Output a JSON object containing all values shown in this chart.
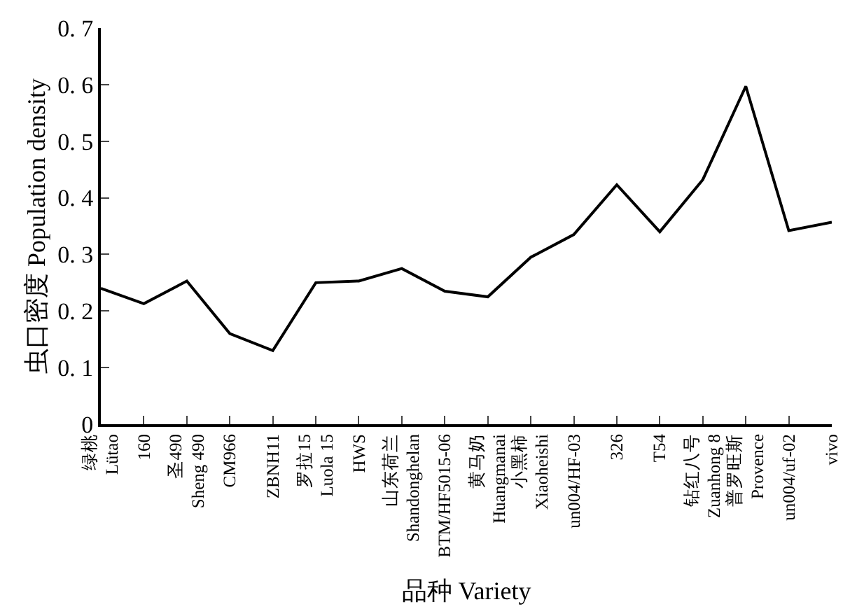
{
  "chart_data": {
    "type": "line",
    "xlabel": "品种 Variety",
    "ylabel": "虫口密度 Population density",
    "categories": [
      "绿桃\nLütao",
      "160",
      "圣490\nSheng 490",
      "CM966",
      "ZBNH11",
      "罗拉15\nLuola 15",
      "HWS",
      "山东荷兰\nShandonghelan",
      "BTM/HF5015-06",
      "黄马奶\nHuangmanai",
      "小黑柿\nXiaoheishi",
      "un004/HF-03",
      "326",
      "T54",
      "钻红八号\nZuanhong 8",
      "普罗旺斯\nProvence",
      "un004/uf-02",
      "vivo"
    ],
    "series": [
      {
        "color": "#000000",
        "values": [
          0.24,
          0.213,
          0.253,
          0.16,
          0.13,
          0.25,
          0.253,
          0.275,
          0.235,
          0.225,
          0.295,
          0.335,
          0.423,
          0.34,
          0.432,
          0.597,
          0.342,
          0.357
        ]
      }
    ],
    "ylim": [
      0,
      0.7
    ],
    "yticks": [
      0,
      0.1,
      0.2,
      0.3,
      0.4,
      0.5,
      0.6,
      0.7
    ],
    "marker": "none",
    "line_style": "solid"
  }
}
